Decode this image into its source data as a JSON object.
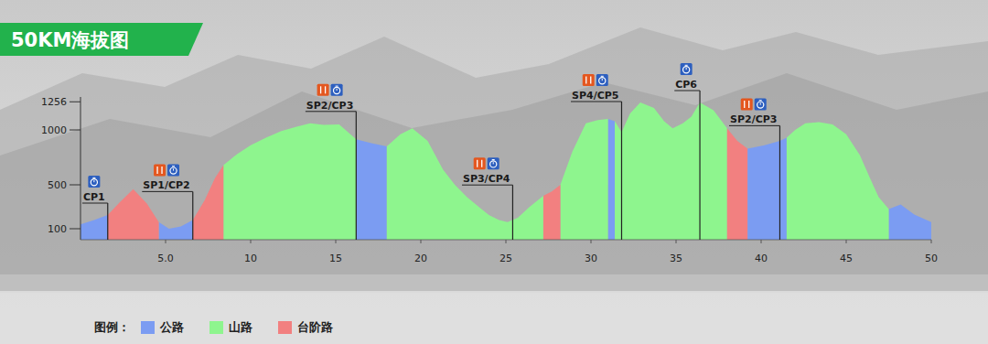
{
  "chart_data": {
    "type": "area",
    "title": "50KM海拔图",
    "x": [
      0,
      0.8,
      1.6,
      2.3,
      3.1,
      3.9,
      4.6,
      5.2,
      5.9,
      6.6,
      7.3,
      7.9,
      8.4,
      9.2,
      10,
      10.9,
      11.8,
      12.7,
      13.5,
      14.3,
      15.2,
      16.2,
      17.1,
      18,
      18.8,
      19.5,
      20.4,
      21.3,
      22,
      22.7,
      23.4,
      24,
      24.6,
      25.1,
      25.7,
      26.4,
      27.2,
      27.7,
      28.2,
      28.9,
      29.7,
      30.4,
      31,
      31.2,
      31.4,
      31.8,
      32.3,
      32.9,
      33.7,
      34.3,
      34.8,
      35.4,
      35.9,
      36.4,
      37.2,
      38,
      38.6,
      39.2,
      40.2,
      41.1,
      41.5,
      42,
      42.6,
      43.4,
      44.2,
      45,
      45.8,
      46.4,
      46.9,
      47.5,
      48.2,
      49,
      50
    ],
    "series": [
      {
        "name": "公路",
        "color": "#7b9cf2",
        "values": [
          140,
          180,
          225,
          null,
          null,
          null,
          160,
          100,
          120,
          180,
          null,
          null,
          null,
          null,
          null,
          null,
          null,
          null,
          null,
          null,
          null,
          915,
          880,
          850,
          null,
          null,
          null,
          null,
          null,
          null,
          null,
          null,
          null,
          null,
          null,
          null,
          null,
          null,
          null,
          null,
          null,
          null,
          1100,
          1090,
          1080,
          null,
          null,
          null,
          null,
          null,
          null,
          null,
          null,
          null,
          null,
          null,
          null,
          830,
          860,
          900,
          930,
          null,
          null,
          null,
          null,
          null,
          null,
          null,
          null,
          280,
          320,
          230,
          160
        ]
      },
      {
        "name": "山路",
        "color": "#8ef58e",
        "values": [
          null,
          null,
          null,
          null,
          null,
          null,
          null,
          null,
          null,
          null,
          null,
          null,
          680,
          780,
          860,
          930,
          990,
          1030,
          1060,
          1045,
          1050,
          915,
          null,
          850,
          960,
          1015,
          900,
          640,
          500,
          390,
          300,
          225,
          180,
          160,
          200,
          300,
          400,
          null,
          500,
          800,
          1060,
          1090,
          1100,
          null,
          1080,
          980,
          1150,
          1250,
          1200,
          1080,
          1015,
          1060,
          1120,
          1250,
          1180,
          1015,
          null,
          null,
          null,
          null,
          930,
          1000,
          1060,
          1070,
          1050,
          960,
          770,
          560,
          390,
          280,
          null,
          null,
          null
        ]
      },
      {
        "name": "台阶路",
        "color": "#f28080",
        "values": [
          null,
          null,
          225,
          340,
          460,
          330,
          160,
          null,
          null,
          180,
          360,
          560,
          680,
          null,
          null,
          null,
          null,
          null,
          null,
          null,
          null,
          null,
          null,
          null,
          null,
          null,
          null,
          null,
          null,
          null,
          null,
          null,
          null,
          null,
          null,
          null,
          400,
          440,
          500,
          null,
          null,
          null,
          null,
          null,
          null,
          null,
          null,
          null,
          null,
          null,
          null,
          null,
          null,
          null,
          null,
          1015,
          900,
          830,
          null,
          null,
          null,
          null,
          null,
          null,
          null,
          null,
          null,
          null,
          null,
          null,
          null,
          null,
          null
        ]
      }
    ],
    "xlim": [
      0,
      50
    ],
    "ylim": [
      0,
      1300
    ],
    "xticks": [
      {
        "value": 5,
        "label": "5.0"
      },
      10,
      15,
      20,
      25,
      30,
      35,
      40,
      45,
      50
    ],
    "yticks": [
      100,
      500,
      1000,
      1256
    ],
    "checkpoints": [
      {
        "label": "CP1",
        "x": 1.6
      },
      {
        "label": "SP1/CP2",
        "x": 6.6
      },
      {
        "label": "SP2/CP3",
        "x": 16.2
      },
      {
        "label": "SP3/CP4",
        "x": 25.4
      },
      {
        "label": "SP4/CP5",
        "x": 31.8
      },
      {
        "label": "CP6",
        "x": 36.4
      },
      {
        "label": "SP2/CP3",
        "x": 41.1
      }
    ],
    "legend": "bottom",
    "legend_title": "图例：",
    "grid": false
  }
}
